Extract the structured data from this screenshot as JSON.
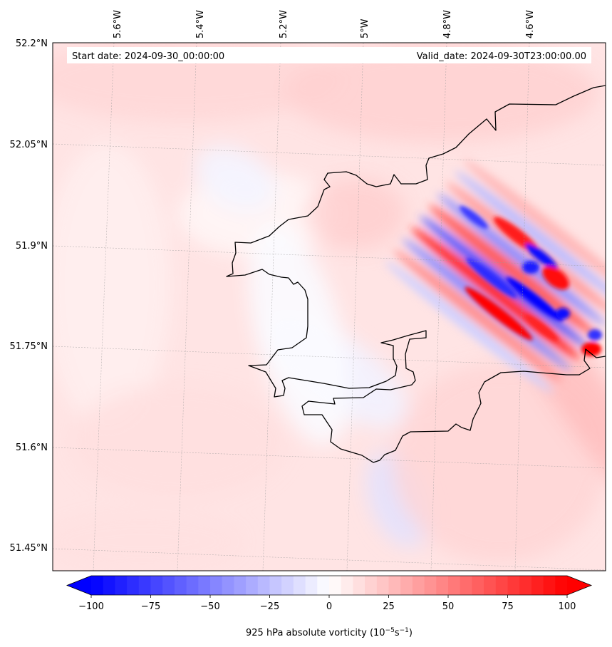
{
  "chart_data": {
    "type": "filled-contour-map",
    "title": "",
    "start_date_label": "Start date: 2024-09-30_00:00:00",
    "valid_date_label": "Valid_date: 2024-09-30T23:00:00.00",
    "lon_ticks": [
      "5.6°W",
      "5.4°W",
      "5.2°W",
      "5°W",
      "4.8°W",
      "4.6°W"
    ],
    "lat_ticks": [
      "52.2°N",
      "52.05°N",
      "51.9°N",
      "51.75°N",
      "51.6°N",
      "51.45°N"
    ],
    "lon_values": [
      -5.6,
      -5.4,
      -5.2,
      -5.0,
      -4.8,
      -4.6
    ],
    "lat_values": [
      52.2,
      52.05,
      51.9,
      51.75,
      51.6,
      51.45
    ],
    "extent": {
      "lon_min": -5.75,
      "lon_max": -4.4,
      "lat_min": 51.43,
      "lat_max": 52.2
    },
    "colorbar": {
      "min": -100,
      "max": 100,
      "step": 5,
      "ticks": [
        -100,
        -75,
        -50,
        -25,
        0,
        25,
        50,
        75,
        100
      ],
      "tick_labels": [
        "−100",
        "−75",
        "−50",
        "−25",
        "0",
        "25",
        "50",
        "75",
        "100"
      ],
      "label_prefix": "925 hPa absolute vorticity (10",
      "label_exp1": "−5",
      "label_mid": "s",
      "label_exp2": "−1",
      "label_suffix": ")",
      "cmap": "bwr",
      "extend": "both"
    },
    "features": [
      "coastline",
      "gridlines"
    ]
  }
}
